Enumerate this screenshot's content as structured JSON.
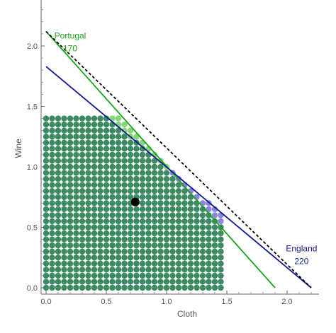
{
  "chart_data": {
    "type": "scatter",
    "xlabel": "Cloth",
    "ylabel": "Wine",
    "xlim": [
      -0.05,
      2.25
    ],
    "ylim": [
      -0.05,
      2.38
    ],
    "x_ticks": [
      "0.0",
      "0.5",
      "1.0",
      "1.5",
      "2.0"
    ],
    "x_tick_values": [
      0,
      0.5,
      1.0,
      1.5,
      2.0
    ],
    "y_ticks": [
      "0.0",
      "0.5",
      "1.0",
      "1.5",
      "2.0"
    ],
    "y_tick_values": [
      0,
      0.5,
      1.0,
      1.5,
      2.0
    ],
    "grid": false,
    "lines": [
      {
        "name": "Portugal",
        "x": [
          0,
          1.9
        ],
        "y": [
          2.12,
          0
        ],
        "color": "#18a418",
        "style": "solid"
      },
      {
        "name": "England",
        "x": [
          0,
          2.2
        ],
        "y": [
          1.83,
          0
        ],
        "color": "#101a8c",
        "style": "solid"
      },
      {
        "x": [
          0,
          2.2
        ],
        "y": [
          2.12,
          0
        ],
        "color": "#000000",
        "style": "dashed"
      }
    ],
    "lattice": {
      "x_start": 0,
      "x_step": 0.05,
      "x_count": 30,
      "y_start": 0,
      "y_step": 0.05,
      "y_count": 29,
      "x_max": 1.47,
      "y_max": 1.42
    },
    "regions": {
      "both_color": "#3b8a62",
      "portugal_only_color": "#86d57a",
      "england_only_color": "#8a86dd"
    },
    "marker": {
      "x": 0.74,
      "y": 0.71,
      "color": "#000000"
    },
    "annotations": [
      {
        "line1": "Portugal",
        "line2": "170",
        "color": "#18a418",
        "x": 0.2,
        "y": 2.06
      },
      {
        "line1": "England",
        "line2": "220",
        "color": "#101a8c",
        "x": 2.12,
        "y": 0.3
      }
    ]
  }
}
